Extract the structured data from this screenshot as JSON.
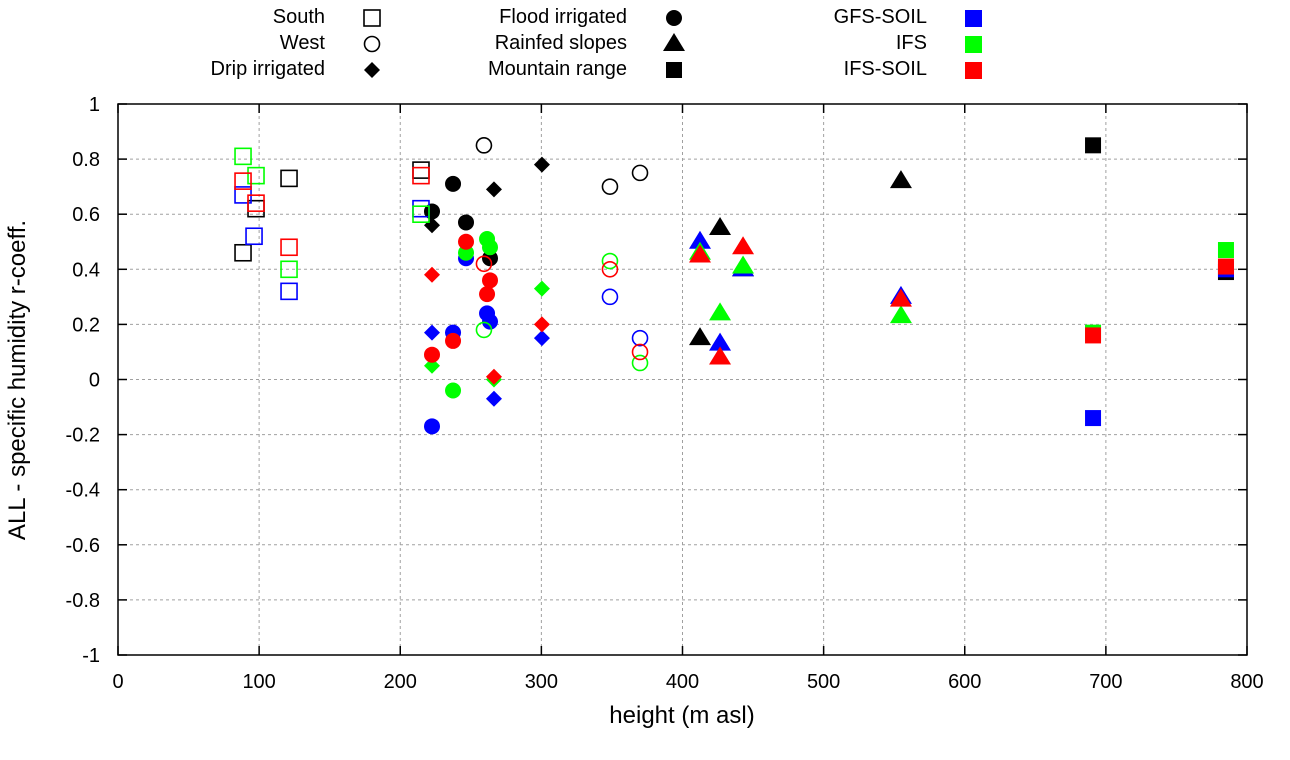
{
  "chart_data": {
    "type": "scatter",
    "title": "",
    "xlabel": "height (m asl)",
    "ylabel": "ALL - specific humidity r-coeff.",
    "xlim": [
      0,
      800
    ],
    "ylim": [
      -1,
      1
    ],
    "xticks": [
      "0",
      "100",
      "200",
      "300",
      "400",
      "500",
      "600",
      "700",
      "800"
    ],
    "yticks": [
      "1",
      "0.8",
      "0.6",
      "0.4",
      "0.2",
      "0",
      "-0.2",
      "-0.4",
      "-0.6",
      "-0.8",
      "-1"
    ],
    "grid": true,
    "legend_placement": "top-outside",
    "legend": {
      "shapes": [
        {
          "label": "South",
          "marker": "open-square"
        },
        {
          "label": "West",
          "marker": "open-circle"
        },
        {
          "label": "Drip irrigated",
          "marker": "filled-diamond"
        },
        {
          "label": "Flood irrigated",
          "marker": "filled-circle"
        },
        {
          "label": "Rainfed slopes",
          "marker": "filled-triangle"
        },
        {
          "label": "Mountain range",
          "marker": "filled-square"
        }
      ],
      "models": [
        {
          "label": "GFS-SOIL",
          "color": "#0000ff"
        },
        {
          "label": "IFS",
          "color": "#00ff00"
        },
        {
          "label": "IFS-SOIL",
          "color": "#ff0000"
        }
      ]
    },
    "colors": {
      "obs": "#000000",
      "GFS-SOIL": "#0000ff",
      "IFS": "#00ff00",
      "IFS-SOIL": "#ff0000"
    },
    "series": [
      {
        "region": "South",
        "marker": "open-square",
        "points": [
          {
            "x": 88.6,
            "y": 0.46,
            "model": "obs"
          },
          {
            "x": 121.2,
            "y": 0.73,
            "model": "obs"
          },
          {
            "x": 214.7,
            "y": 0.76,
            "model": "obs"
          },
          {
            "x": 97.8,
            "y": 0.62,
            "model": "obs"
          },
          {
            "x": 88.6,
            "y": 0.67,
            "model": "GFS-SOIL"
          },
          {
            "x": 96.4,
            "y": 0.52,
            "model": "GFS-SOIL"
          },
          {
            "x": 121.2,
            "y": 0.32,
            "model": "GFS-SOIL"
          },
          {
            "x": 214.7,
            "y": 0.62,
            "model": "GFS-SOIL"
          },
          {
            "x": 88.6,
            "y": 0.81,
            "model": "IFS"
          },
          {
            "x": 97.8,
            "y": 0.74,
            "model": "IFS"
          },
          {
            "x": 121.2,
            "y": 0.4,
            "model": "IFS"
          },
          {
            "x": 214.7,
            "y": 0.6,
            "model": "IFS"
          },
          {
            "x": 88.6,
            "y": 0.72,
            "model": "IFS-SOIL"
          },
          {
            "x": 97.8,
            "y": 0.64,
            "model": "IFS-SOIL"
          },
          {
            "x": 121.2,
            "y": 0.48,
            "model": "IFS-SOIL"
          },
          {
            "x": 214.7,
            "y": 0.74,
            "model": "IFS-SOIL"
          }
        ]
      },
      {
        "region": "West",
        "marker": "open-circle",
        "points": [
          {
            "x": 259.3,
            "y": 0.85,
            "model": "obs"
          },
          {
            "x": 348.6,
            "y": 0.7,
            "model": "obs"
          },
          {
            "x": 369.9,
            "y": 0.75,
            "model": "obs"
          },
          {
            "x": 348.6,
            "y": 0.3,
            "model": "GFS-SOIL"
          },
          {
            "x": 369.9,
            "y": 0.15,
            "model": "GFS-SOIL"
          },
          {
            "x": 259.3,
            "y": 0.18,
            "model": "IFS"
          },
          {
            "x": 348.6,
            "y": 0.43,
            "model": "IFS"
          },
          {
            "x": 369.9,
            "y": 0.06,
            "model": "IFS"
          },
          {
            "x": 259.3,
            "y": 0.42,
            "model": "IFS-SOIL"
          },
          {
            "x": 348.6,
            "y": 0.4,
            "model": "IFS-SOIL"
          },
          {
            "x": 369.9,
            "y": 0.1,
            "model": "IFS-SOIL"
          }
        ]
      },
      {
        "region": "Drip irrigated",
        "marker": "filled-diamond",
        "points": [
          {
            "x": 222.5,
            "y": 0.56,
            "model": "obs"
          },
          {
            "x": 266.4,
            "y": 0.69,
            "model": "obs"
          },
          {
            "x": 300.4,
            "y": 0.78,
            "model": "obs"
          },
          {
            "x": 222.5,
            "y": 0.17,
            "model": "GFS-SOIL"
          },
          {
            "x": 266.4,
            "y": -0.07,
            "model": "GFS-SOIL"
          },
          {
            "x": 300.4,
            "y": 0.15,
            "model": "GFS-SOIL"
          },
          {
            "x": 222.5,
            "y": 0.05,
            "model": "IFS"
          },
          {
            "x": 266.4,
            "y": 0.0,
            "model": "IFS"
          },
          {
            "x": 300.4,
            "y": 0.33,
            "model": "IFS"
          },
          {
            "x": 222.5,
            "y": 0.38,
            "model": "IFS-SOIL"
          },
          {
            "x": 266.4,
            "y": 0.01,
            "model": "IFS-SOIL"
          },
          {
            "x": 300.4,
            "y": 0.2,
            "model": "IFS-SOIL"
          }
        ]
      },
      {
        "region": "Flood irrigated",
        "marker": "filled-circle",
        "points": [
          {
            "x": 222.5,
            "y": 0.61,
            "model": "obs"
          },
          {
            "x": 237.4,
            "y": 0.71,
            "model": "obs"
          },
          {
            "x": 246.6,
            "y": 0.57,
            "model": "obs"
          },
          {
            "x": 263.6,
            "y": 0.44,
            "model": "obs"
          },
          {
            "x": 222.5,
            "y": -0.17,
            "model": "GFS-SOIL"
          },
          {
            "x": 237.4,
            "y": 0.17,
            "model": "GFS-SOIL"
          },
          {
            "x": 246.6,
            "y": 0.44,
            "model": "GFS-SOIL"
          },
          {
            "x": 261.5,
            "y": 0.24,
            "model": "GFS-SOIL"
          },
          {
            "x": 263.6,
            "y": 0.21,
            "model": "GFS-SOIL"
          },
          {
            "x": 237.4,
            "y": -0.04,
            "model": "IFS"
          },
          {
            "x": 246.6,
            "y": 0.46,
            "model": "IFS"
          },
          {
            "x": 261.5,
            "y": 0.51,
            "model": "IFS"
          },
          {
            "x": 263.6,
            "y": 0.48,
            "model": "IFS"
          },
          {
            "x": 222.5,
            "y": 0.09,
            "model": "IFS-SOIL"
          },
          {
            "x": 237.4,
            "y": 0.14,
            "model": "IFS-SOIL"
          },
          {
            "x": 246.6,
            "y": 0.5,
            "model": "IFS-SOIL"
          },
          {
            "x": 261.5,
            "y": 0.31,
            "model": "IFS-SOIL"
          },
          {
            "x": 263.6,
            "y": 0.36,
            "model": "IFS-SOIL"
          }
        ]
      },
      {
        "region": "Rainfed slopes",
        "marker": "filled-triangle",
        "points": [
          {
            "x": 412.4,
            "y": 0.15,
            "model": "obs"
          },
          {
            "x": 426.6,
            "y": 0.55,
            "model": "obs"
          },
          {
            "x": 442.9,
            "y": 0.4,
            "model": "obs"
          },
          {
            "x": 554.8,
            "y": 0.72,
            "model": "obs"
          },
          {
            "x": 412.4,
            "y": 0.5,
            "model": "GFS-SOIL"
          },
          {
            "x": 426.6,
            "y": 0.13,
            "model": "GFS-SOIL"
          },
          {
            "x": 442.9,
            "y": 0.4,
            "model": "GFS-SOIL"
          },
          {
            "x": 554.8,
            "y": 0.3,
            "model": "GFS-SOIL"
          },
          {
            "x": 412.4,
            "y": 0.46,
            "model": "IFS"
          },
          {
            "x": 426.6,
            "y": 0.24,
            "model": "IFS"
          },
          {
            "x": 442.9,
            "y": 0.41,
            "model": "IFS"
          },
          {
            "x": 554.8,
            "y": 0.23,
            "model": "IFS"
          },
          {
            "x": 412.4,
            "y": 0.45,
            "model": "IFS-SOIL"
          },
          {
            "x": 426.6,
            "y": 0.08,
            "model": "IFS-SOIL"
          },
          {
            "x": 442.9,
            "y": 0.48,
            "model": "IFS-SOIL"
          },
          {
            "x": 554.8,
            "y": 0.29,
            "model": "IFS-SOIL"
          }
        ]
      },
      {
        "region": "Mountain range",
        "marker": "filled-square",
        "points": [
          {
            "x": 690.9,
            "y": 0.85,
            "model": "obs"
          },
          {
            "x": 785.1,
            "y": 0.39,
            "model": "obs"
          },
          {
            "x": 690.9,
            "y": -0.14,
            "model": "GFS-SOIL"
          },
          {
            "x": 785.1,
            "y": 0.4,
            "model": "GFS-SOIL"
          },
          {
            "x": 690.9,
            "y": 0.17,
            "model": "IFS"
          },
          {
            "x": 785.1,
            "y": 0.47,
            "model": "IFS"
          },
          {
            "x": 690.9,
            "y": 0.16,
            "model": "IFS-SOIL"
          },
          {
            "x": 785.1,
            "y": 0.41,
            "model": "IFS-SOIL"
          }
        ]
      }
    ]
  }
}
